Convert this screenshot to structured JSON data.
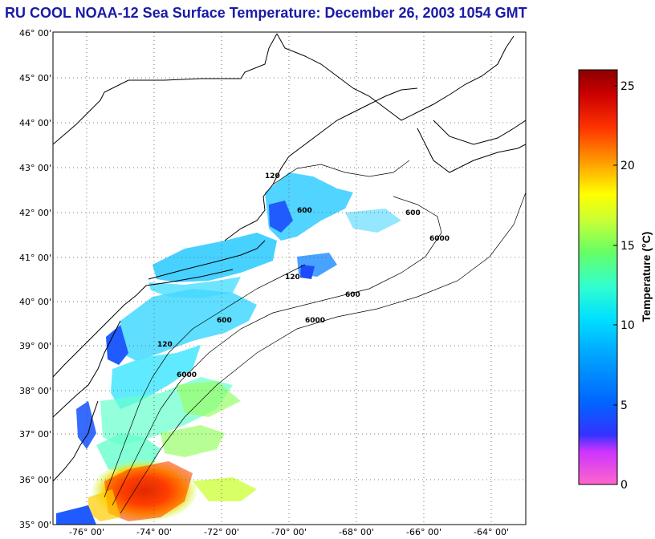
{
  "title": "RU COOL  NOAA-12  Sea Surface Temperature:  December 26, 2003 1054 GMT",
  "map": {
    "lat_labels": [
      "46° 00'",
      "45° 00'",
      "44° 00'",
      "43° 00'",
      "42° 00'",
      "41° 00'",
      "40° 00'",
      "39° 00'",
      "38° 00'",
      "37° 00'",
      "36° 00'",
      "35° 00'"
    ],
    "lon_labels": [
      "-76° 00'",
      "-74° 00'",
      "-72° 00'",
      "-70° 00'",
      "-68° 00'",
      "-66° 00'",
      "-64° 00'"
    ],
    "contour_labels": [
      "120",
      "600",
      "6000"
    ],
    "lat_range": [
      35,
      46
    ],
    "lon_range": [
      -77,
      -63
    ]
  },
  "colorbar": {
    "title": "Temperature (°C)",
    "tick_labels": [
      "0",
      "5",
      "10",
      "15",
      "20",
      "25"
    ],
    "range": [
      0,
      26
    ],
    "colors": [
      "#ff66cc",
      "#cc33ff",
      "#3333ff",
      "#0066ff",
      "#00ccff",
      "#33ffcc",
      "#66ff66",
      "#ccff33",
      "#ffff00",
      "#ff9900",
      "#ff3300",
      "#cc0000",
      "#8b0000"
    ]
  }
}
